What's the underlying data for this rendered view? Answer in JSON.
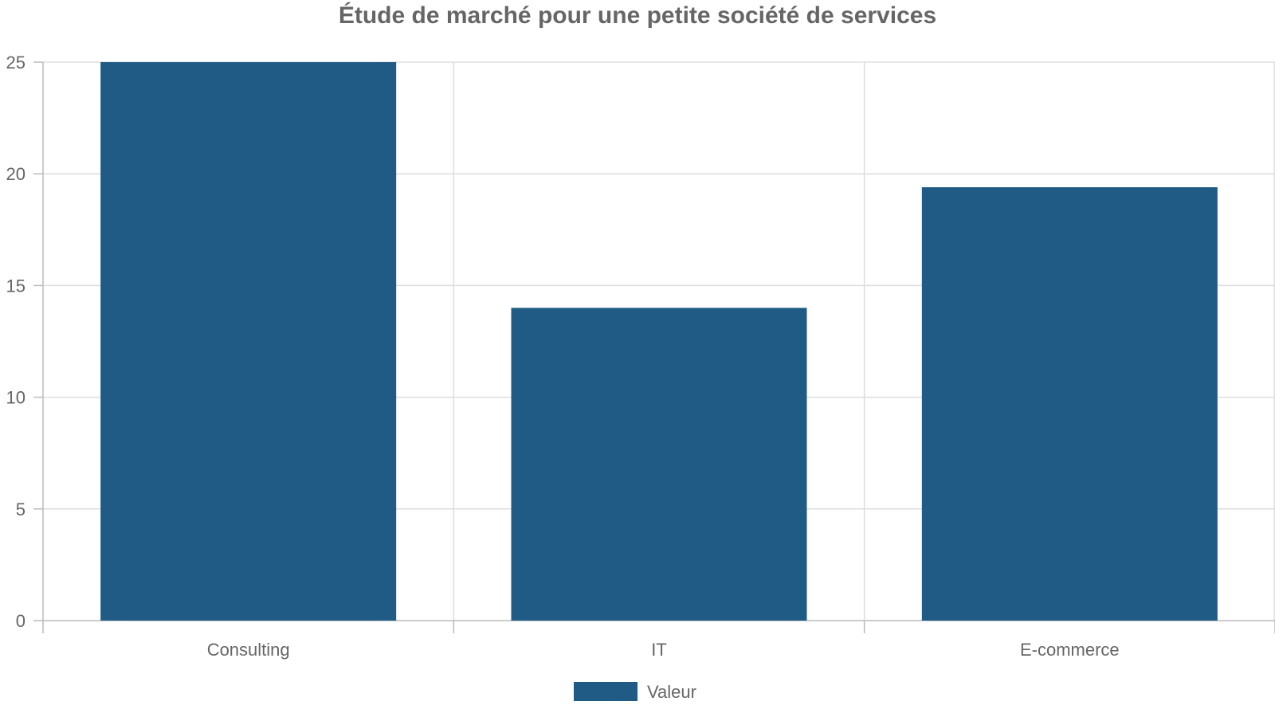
{
  "chart_data": {
    "type": "bar",
    "title": "Étude de marché pour une petite société de services",
    "xlabel": "",
    "ylabel": "",
    "categories": [
      "Consulting",
      "IT",
      "E-commerce"
    ],
    "series": [
      {
        "name": "Valeur",
        "values": [
          25,
          14,
          19.4
        ]
      }
    ],
    "ylim": [
      0,
      25
    ],
    "yticks": [
      0,
      5,
      10,
      15,
      20,
      25
    ],
    "grid": true,
    "legend": "bottom-center",
    "colors": {
      "bar": "#1f5b85",
      "grid": "#dddddd",
      "axis": "#bbbbbb",
      "text": "#666666"
    }
  }
}
